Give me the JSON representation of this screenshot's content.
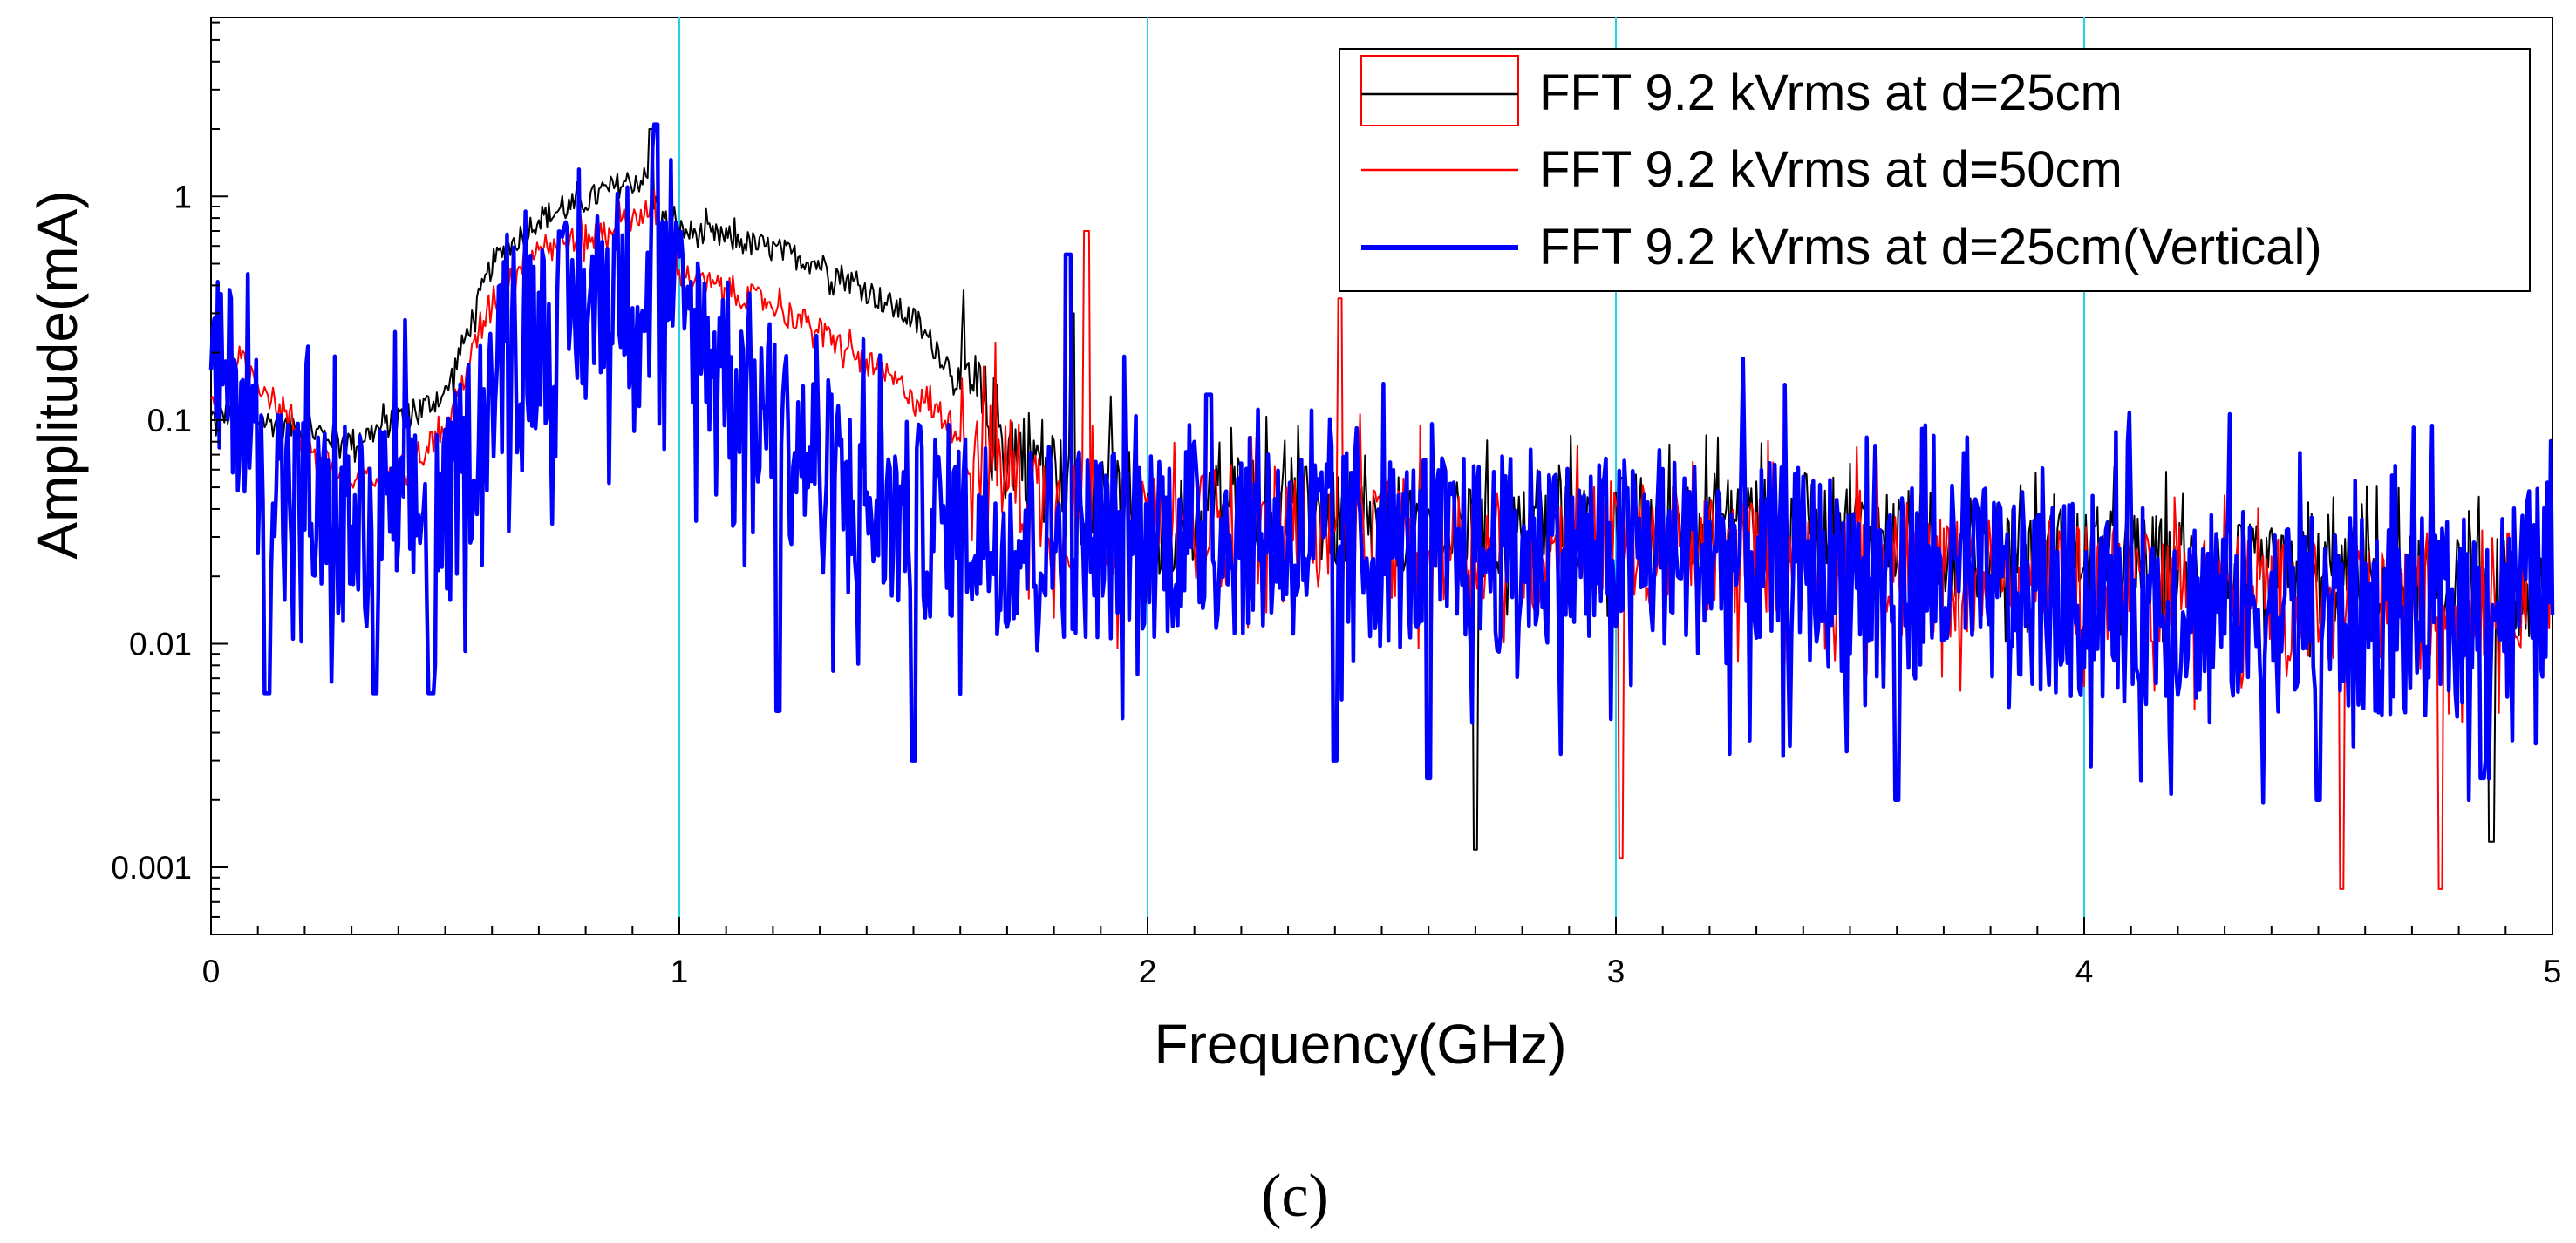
{
  "chart_data": {
    "type": "line",
    "title": "",
    "xlabel": "Frequency(GHz)",
    "ylabel": "Amplitude(mA)",
    "xlim": [
      0,
      5
    ],
    "ylim_log10": [
      -3.3,
      0.8
    ],
    "yscale": "log",
    "x_ticks": [
      0,
      1,
      2,
      3,
      4,
      5
    ],
    "x_tick_labels": [
      "0",
      "1",
      "2",
      "3",
      "4",
      "5"
    ],
    "y_ticks": [
      0.001,
      0.01,
      0.1,
      1
    ],
    "y_tick_labels": [
      "0.001",
      "0.01",
      "0.1",
      "1"
    ],
    "vertical_gridlines_at": [
      1,
      2,
      3,
      4
    ],
    "grid_color": "#22d3e6",
    "legend_position": "top-right",
    "caption": "(c)",
    "series": [
      {
        "name": "FFT 9.2 kVrms at d=25cm",
        "color": "#000000",
        "legend_box_color": "#ff0000",
        "points": [
          [
            0,
            0.1
          ],
          [
            0.05,
            0.11
          ],
          [
            0.1,
            0.1
          ],
          [
            0.2,
            0.09
          ],
          [
            0.3,
            0.08
          ],
          [
            0.4,
            0.1
          ],
          [
            0.5,
            0.13
          ],
          [
            0.6,
            0.5
          ],
          [
            0.7,
            0.8
          ],
          [
            0.8,
            0.95
          ],
          [
            0.88,
            1.15
          ],
          [
            0.93,
            1.2
          ],
          [
            0.96,
            0.8
          ],
          [
            1.0,
            0.7
          ],
          [
            1.1,
            0.65
          ],
          [
            1.2,
            0.58
          ],
          [
            1.3,
            0.5
          ],
          [
            1.4,
            0.38
          ],
          [
            1.5,
            0.28
          ],
          [
            1.6,
            0.15
          ],
          [
            1.7,
            0.08
          ],
          [
            1.8,
            0.06
          ],
          [
            1.85,
            0.04
          ],
          [
            1.9,
            0.055
          ],
          [
            2.0,
            0.03
          ],
          [
            2.2,
            0.045
          ],
          [
            2.4,
            0.035
          ],
          [
            2.6,
            0.035
          ],
          [
            2.7,
            0.03
          ],
          [
            2.8,
            0.03
          ],
          [
            3.0,
            0.035
          ],
          [
            3.2,
            0.035
          ],
          [
            3.4,
            0.035
          ],
          [
            3.6,
            0.03
          ],
          [
            3.8,
            0.025
          ],
          [
            4.0,
            0.025
          ],
          [
            4.2,
            0.022
          ],
          [
            4.4,
            0.02
          ],
          [
            4.6,
            0.02
          ],
          [
            4.8,
            0.018
          ],
          [
            5.0,
            0.018
          ]
        ],
        "spikes": [
          [
            0.94,
            2.0
          ],
          [
            1.84,
            0.3
          ],
          [
            2.7,
            0.0012
          ],
          [
            4.87,
            0.0013
          ]
        ]
      },
      {
        "name": "FFT 9.2 kVrms at d=50cm",
        "color": "#ff0000",
        "points": [
          [
            0,
            0.12
          ],
          [
            0.05,
            0.2
          ],
          [
            0.1,
            0.15
          ],
          [
            0.2,
            0.08
          ],
          [
            0.3,
            0.05
          ],
          [
            0.4,
            0.06
          ],
          [
            0.5,
            0.09
          ],
          [
            0.6,
            0.35
          ],
          [
            0.7,
            0.6
          ],
          [
            0.8,
            0.65
          ],
          [
            0.9,
            0.8
          ],
          [
            0.94,
            0.9
          ],
          [
            1.0,
            0.45
          ],
          [
            1.1,
            0.38
          ],
          [
            1.2,
            0.33
          ],
          [
            1.3,
            0.25
          ],
          [
            1.4,
            0.18
          ],
          [
            1.5,
            0.13
          ],
          [
            1.6,
            0.09
          ],
          [
            1.7,
            0.06
          ],
          [
            1.8,
            0.04
          ],
          [
            1.9,
            0.035
          ],
          [
            2.0,
            0.03
          ],
          [
            2.2,
            0.035
          ],
          [
            2.4,
            0.03
          ],
          [
            2.6,
            0.03
          ],
          [
            2.8,
            0.025
          ],
          [
            3.0,
            0.03
          ],
          [
            3.2,
            0.025
          ],
          [
            3.4,
            0.025
          ],
          [
            3.6,
            0.02
          ],
          [
            3.8,
            0.02
          ],
          [
            4.0,
            0.02
          ],
          [
            4.2,
            0.018
          ],
          [
            4.4,
            0.016
          ],
          [
            4.6,
            0.015
          ],
          [
            4.8,
            0.014
          ],
          [
            5.0,
            0.02
          ]
        ],
        "spikes": [
          [
            1.87,
            0.7
          ],
          [
            2.41,
            0.35
          ],
          [
            3.01,
            0.0011
          ],
          [
            4.55,
            0.0008
          ],
          [
            4.76,
            0.0008
          ]
        ]
      },
      {
        "name": "FFT 9.2 kVrms at d=25cm(Vertical)",
        "color": "#0000ff",
        "points": [
          [
            0,
            0.15
          ],
          [
            0.05,
            0.15
          ],
          [
            0.1,
            0.07
          ],
          [
            0.2,
            0.04
          ],
          [
            0.3,
            0.03
          ],
          [
            0.4,
            0.04
          ],
          [
            0.5,
            0.035
          ],
          [
            0.6,
            0.15
          ],
          [
            0.7,
            0.25
          ],
          [
            0.8,
            0.3
          ],
          [
            0.85,
            0.4
          ],
          [
            0.9,
            0.45
          ],
          [
            0.95,
            0.4
          ],
          [
            1.0,
            0.3
          ],
          [
            1.1,
            0.18
          ],
          [
            1.2,
            0.1
          ],
          [
            1.3,
            0.06
          ],
          [
            1.4,
            0.04
          ],
          [
            1.5,
            0.035
          ],
          [
            1.6,
            0.035
          ],
          [
            1.7,
            0.03
          ],
          [
            1.8,
            0.03
          ],
          [
            1.9,
            0.028
          ],
          [
            2.0,
            0.03
          ],
          [
            2.2,
            0.03
          ],
          [
            2.4,
            0.028
          ],
          [
            2.6,
            0.025
          ],
          [
            2.8,
            0.025
          ],
          [
            3.0,
            0.025
          ],
          [
            3.2,
            0.025
          ],
          [
            3.4,
            0.022
          ],
          [
            3.6,
            0.02
          ],
          [
            3.8,
            0.018
          ],
          [
            4.0,
            0.015
          ],
          [
            4.2,
            0.015
          ],
          [
            4.4,
            0.014
          ],
          [
            4.6,
            0.013
          ],
          [
            4.8,
            0.013
          ],
          [
            5.0,
            0.02
          ]
        ],
        "spikes": [
          [
            0.95,
            2.1
          ],
          [
            1.83,
            0.55
          ],
          [
            2.13,
            0.13
          ],
          [
            0.12,
            0.006
          ],
          [
            0.35,
            0.006
          ],
          [
            0.47,
            0.006
          ],
          [
            1.21,
            0.005
          ],
          [
            1.5,
            0.003
          ],
          [
            2.4,
            0.003
          ],
          [
            2.6,
            0.0025
          ],
          [
            3.6,
            0.002
          ],
          [
            4.5,
            0.002
          ],
          [
            4.85,
            0.0025
          ]
        ]
      }
    ]
  }
}
